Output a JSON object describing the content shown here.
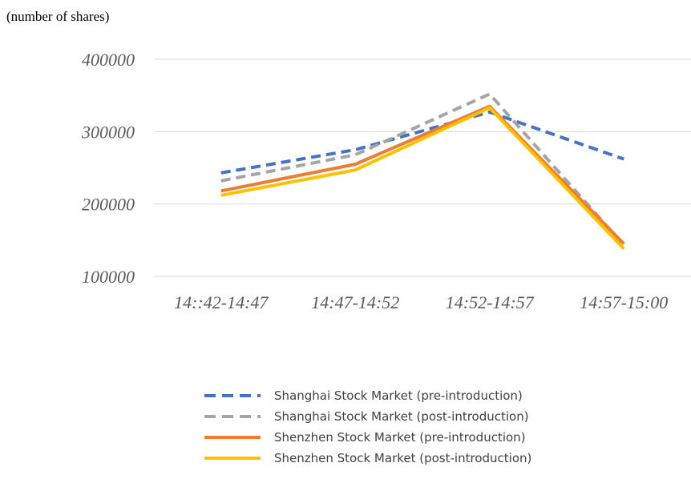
{
  "chart_data": {
    "type": "line",
    "y_axis_label": "(number of shares)",
    "categories": [
      "14::42-14:47",
      "14:47-14:52",
      "14:52-14:57",
      "14:57-15:00"
    ],
    "series": [
      {
        "name": "Shanghai Stock Market (pre-introduction)",
        "color": "#4472c4",
        "dashed": true,
        "values": [
          243000,
          275000,
          327000,
          262000
        ]
      },
      {
        "name": "Shanghai Stock Market (post-introduction)",
        "color": "#a5a5a5",
        "dashed": true,
        "values": [
          232000,
          268000,
          352000,
          143000
        ]
      },
      {
        "name": "Shenzhen Stock Market (pre-introduction)",
        "color": "#ed7d31",
        "dashed": false,
        "values": [
          218000,
          255000,
          335000,
          145000
        ]
      },
      {
        "name": "Shenzhen Stock Market (post-introduction)",
        "color": "#ffc000",
        "dashed": false,
        "values": [
          212000,
          247000,
          333000,
          138000
        ]
      }
    ],
    "ylim": [
      100000,
      400000
    ],
    "yticks": [
      100000,
      200000,
      300000,
      400000
    ],
    "grid": true
  }
}
